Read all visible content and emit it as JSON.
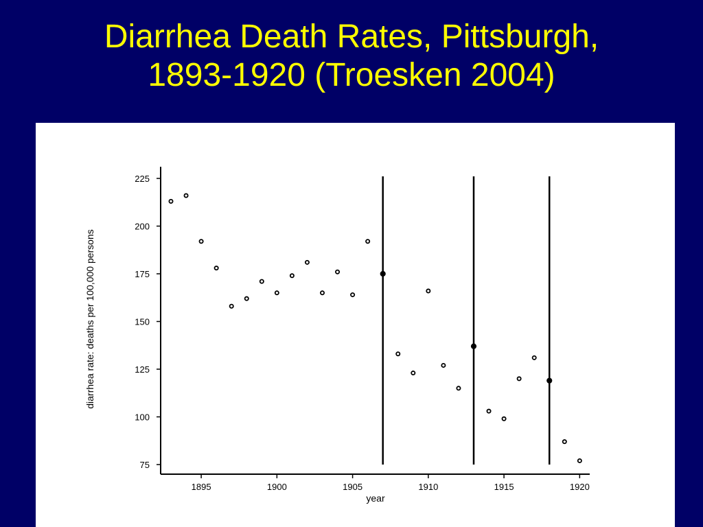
{
  "slide": {
    "title_line1": "Diarrhea Death Rates, Pittsburgh,",
    "title_line2": "1893-1920 (Troesken 2004)"
  },
  "colors": {
    "background": "#000066",
    "title": "#ffff00",
    "panel": "#ffffff",
    "ink": "#000000"
  },
  "chart_data": {
    "type": "scatter",
    "title": "Diarrhea Death Rates, Pittsburgh, 1893-1920 (Troesken 2004)",
    "xlabel": "year",
    "ylabel": "diarrhea rate: deaths per 100,000 persons",
    "xlim": [
      1892,
      1921
    ],
    "ylim": [
      75,
      225
    ],
    "xticks": [
      1895,
      1900,
      1905,
      1910,
      1915,
      1920
    ],
    "yticks": [
      75,
      100,
      125,
      150,
      175,
      200,
      225
    ],
    "grid": false,
    "legend": "none",
    "series": [
      {
        "x": [
          1893,
          1894,
          1895,
          1896,
          1897,
          1898,
          1899,
          1900,
          1901,
          1902,
          1903,
          1904,
          1905,
          1906,
          1907,
          1908,
          1909,
          1910,
          1911,
          1912,
          1913,
          1914,
          1915,
          1916,
          1917,
          1918,
          1919,
          1920
        ],
        "y": [
          213,
          216,
          192,
          178,
          158,
          162,
          171,
          165,
          174,
          181,
          165,
          176,
          164,
          192,
          175,
          133,
          123,
          166,
          127,
          115,
          137,
          103,
          99,
          120,
          131,
          119,
          87,
          77
        ]
      }
    ],
    "vertical_lines": [
      1907,
      1913,
      1918
    ]
  }
}
